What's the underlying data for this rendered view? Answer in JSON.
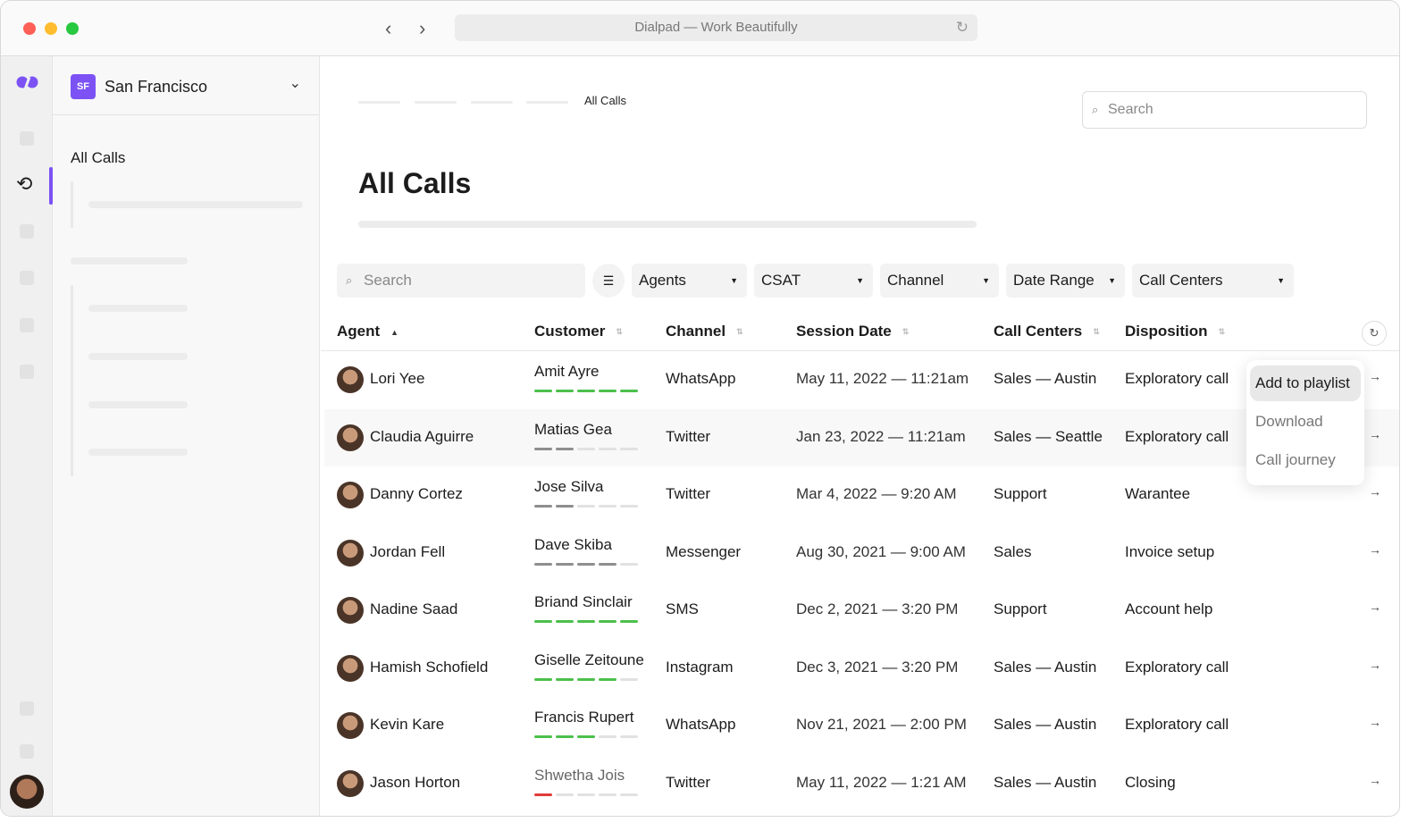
{
  "window": {
    "title": "Dialpad — Work Beautifully"
  },
  "colors": {
    "accent": "#7c52f4",
    "good": "#4cc04c",
    "neutral": "#8e8e8e",
    "bad": "#e03b3b",
    "empty": "#e1e1e1"
  },
  "sidebar": {
    "badge": "SF",
    "location": "San Francisco",
    "section": "All Calls"
  },
  "breadcrumb": {
    "current": "All Calls"
  },
  "search": {
    "placeholder": "Search"
  },
  "page": {
    "title": "All Calls"
  },
  "filters": {
    "search_placeholder": "Search",
    "items": [
      "Agents",
      "CSAT",
      "Channel",
      "Date Range",
      "Call Centers"
    ]
  },
  "table": {
    "columns": [
      "Agent",
      "Customer",
      "Channel",
      "Session Date",
      "Call Centers",
      "Disposition"
    ],
    "rows": [
      {
        "agent": "Lori Yee",
        "customer": "Amit Ayre",
        "csat": 5,
        "tone": "good",
        "channel": "WhatsApp",
        "date": "May 11, 2022 — 11:21am",
        "center": "Sales — Austin",
        "disposition": "Exploratory call"
      },
      {
        "agent": "Claudia Aguirre",
        "customer": "Matias Gea",
        "csat": 2,
        "tone": "neutral",
        "channel": "Twitter",
        "date": "Jan 23, 2022 — 11:21am",
        "center": "Sales — Seattle",
        "disposition": "Exploratory call"
      },
      {
        "agent": "Danny Cortez",
        "customer": "Jose Silva",
        "csat": 2,
        "tone": "neutral",
        "channel": "Twitter",
        "date": "Mar 4, 2022 — 9:20 AM",
        "center": "Support",
        "disposition": "Warantee"
      },
      {
        "agent": "Jordan Fell",
        "customer": "Dave Skiba",
        "csat": 4,
        "tone": "neutral",
        "channel": "Messenger",
        "date": "Aug 30, 2021 — 9:00 AM",
        "center": "Sales",
        "disposition": "Invoice setup"
      },
      {
        "agent": "Nadine Saad",
        "customer": "Briand Sinclair",
        "csat": 5,
        "tone": "good",
        "channel": "SMS",
        "date": "Dec 2, 2021 — 3:20 PM",
        "center": "Support",
        "disposition": "Account help"
      },
      {
        "agent": "Hamish Schofield",
        "customer": "Giselle Zeitoune",
        "csat": 4,
        "tone": "good",
        "channel": "Instagram",
        "date": "Dec 3, 2021 — 3:20 PM",
        "center": "Sales — Austin",
        "disposition": "Exploratory call"
      },
      {
        "agent": "Kevin Kare",
        "customer": "Francis Rupert",
        "csat": 3,
        "tone": "good",
        "channel": "WhatsApp",
        "date": "Nov 21, 2021 — 2:00 PM",
        "center": "Sales — Austin",
        "disposition": "Exploratory call"
      },
      {
        "agent": "Jason Horton",
        "customer": "Shwetha Jois",
        "csat": 1,
        "tone": "bad",
        "channel": "Twitter",
        "date": "May 11, 2022 — 1:21 AM",
        "center": "Sales — Austin",
        "disposition": "Closing"
      }
    ]
  },
  "context_menu": {
    "items": [
      "Add to playlist",
      "Download",
      "Call journey"
    ]
  }
}
